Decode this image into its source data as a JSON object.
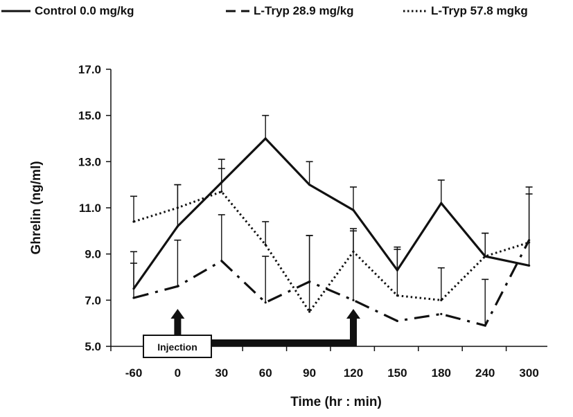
{
  "chart_data": {
    "type": "line",
    "title": "",
    "xlabel": "Time (hr : min)",
    "ylabel": "Ghrelin (ng/ml)",
    "categories": [
      "-60",
      "0",
      "30",
      "60",
      "90",
      "120",
      "150",
      "180",
      "240",
      "300"
    ],
    "ylim": [
      5.0,
      17.0
    ],
    "yticks": [
      "5.0",
      "7.0",
      "9.0",
      "11.0",
      "13.0",
      "15.0",
      "17.0"
    ],
    "grid": false,
    "legend_position": "top",
    "series": [
      {
        "name": "Control 0.0 mg/kg",
        "style": "solid",
        "values": [
          7.5,
          10.2,
          12.1,
          14.0,
          12.0,
          10.9,
          8.3,
          11.2,
          8.9,
          8.5
        ],
        "error": [
          1.6,
          1.8,
          1.0,
          1.0,
          1.0,
          1.0,
          1.0,
          1.0,
          1.0,
          3.4
        ]
      },
      {
        "name": "L-Tryp 28.9 mg/kg",
        "style": "dashdot",
        "values": [
          7.1,
          7.6,
          8.7,
          6.9,
          7.8,
          7.0,
          6.1,
          6.4,
          5.9,
          9.6
        ],
        "error": [
          1.5,
          2.0,
          2.0,
          2.0,
          2.0,
          3.0,
          0.0,
          0.0,
          2.0,
          2.0
        ]
      },
      {
        "name": "L-Tryp 57.8 mgkg",
        "style": "dotted",
        "values": [
          10.4,
          11.0,
          11.7,
          9.4,
          6.5,
          9.1,
          7.2,
          7.0,
          8.9,
          9.5
        ],
        "error": [
          1.1,
          1.0,
          1.0,
          1.0,
          3.3,
          1.0,
          2.0,
          1.4,
          1.0,
          0.0
        ]
      }
    ],
    "annotations": [
      {
        "text": "Injection"
      }
    ],
    "colors": {
      "line": "#111111",
      "text": "#111111"
    }
  }
}
